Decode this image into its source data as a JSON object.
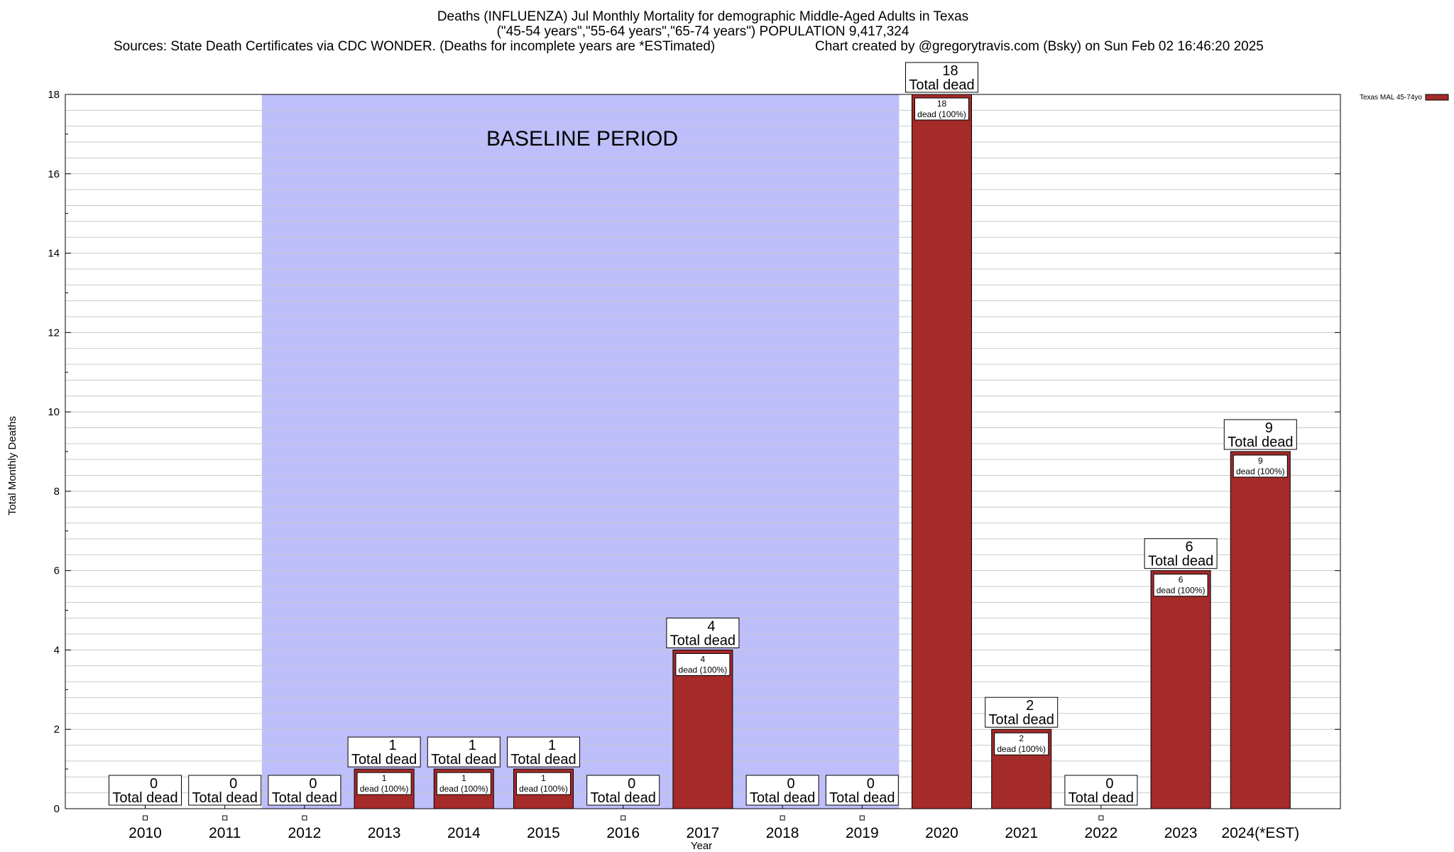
{
  "chart_data": {
    "type": "bar",
    "title": "Deaths (INFLUENZA) Jul Monthly Mortality for demographic Middle-Aged Adults in Texas",
    "subtitle": "(\"45-54 years\",\"55-64 years\",\"65-74 years\") POPULATION 9,417,324",
    "sources": "Sources: State Death Certificates via CDC WONDER. (Deaths for incomplete years are *ESTimated)",
    "credit": "Chart created by @gregorytravis.com (Bsky) on Sun Feb 02 16:46:20 2025",
    "xlabel": "Year",
    "ylabel": "Total Monthly Deaths",
    "ylim": [
      0,
      18
    ],
    "yticks": [
      "0",
      "2",
      "4",
      "6",
      "8",
      "10",
      "12",
      "14",
      "16",
      "18"
    ],
    "categories": [
      "2010",
      "2011",
      "2012",
      "2013",
      "2014",
      "2015",
      "2016",
      "2017",
      "2018",
      "2019",
      "2020",
      "2021",
      "2022",
      "2023",
      "2024(*EST)"
    ],
    "series": [
      {
        "name": "Texas MAL 45-74yo",
        "values": [
          0,
          0,
          0,
          1,
          1,
          1,
          0,
          4,
          0,
          0,
          18,
          2,
          0,
          6,
          9
        ]
      }
    ],
    "total_label": "Total dead",
    "segment_label": "dead (100%)",
    "baseline": {
      "label": "BASELINE PERIOD",
      "from": "2012",
      "to": "2019"
    },
    "grid": true,
    "legend_position": "top-right",
    "colors": {
      "bar": "#a52a2a",
      "baseline": "#bebefb",
      "grid": "#c8c8c8"
    }
  }
}
